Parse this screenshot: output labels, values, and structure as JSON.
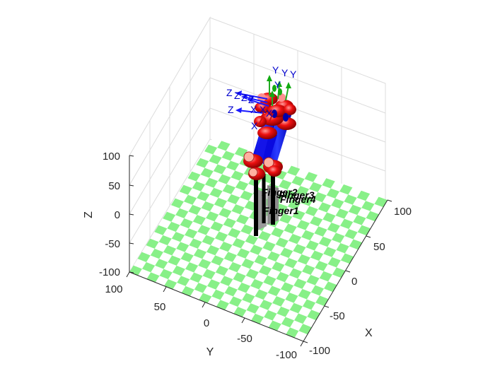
{
  "axes": {
    "xlabel": "X",
    "ylabel": "Y",
    "zlabel": "Z",
    "x_ticks": [
      "100",
      "50",
      "0",
      "-50",
      "-100"
    ],
    "y_ticks": [
      "100",
      "50",
      "0",
      "-50",
      "-100"
    ],
    "z_ticks": [
      "100",
      "50",
      "0",
      "-50",
      "-100"
    ]
  },
  "fingers": {
    "f1": "Finger1",
    "f2": "Finger2",
    "f3": "Finger3",
    "f4": "Finger4"
  },
  "frames": {
    "z1": "Z",
    "z2": "Z",
    "z3": "Z",
    "z4": "Z",
    "z5": "Z",
    "y1": "Y",
    "y2": "Y",
    "y3": "Y",
    "y4": "Y",
    "x1": "X",
    "x2": "X",
    "x3": "X",
    "x4": "X"
  },
  "colors": {
    "floor_green": "#88f088",
    "floor_white": "#ffffff",
    "link_blue": "#1a1aff",
    "joint_red": "#ee1111",
    "text_blue": "#0000cc"
  }
}
